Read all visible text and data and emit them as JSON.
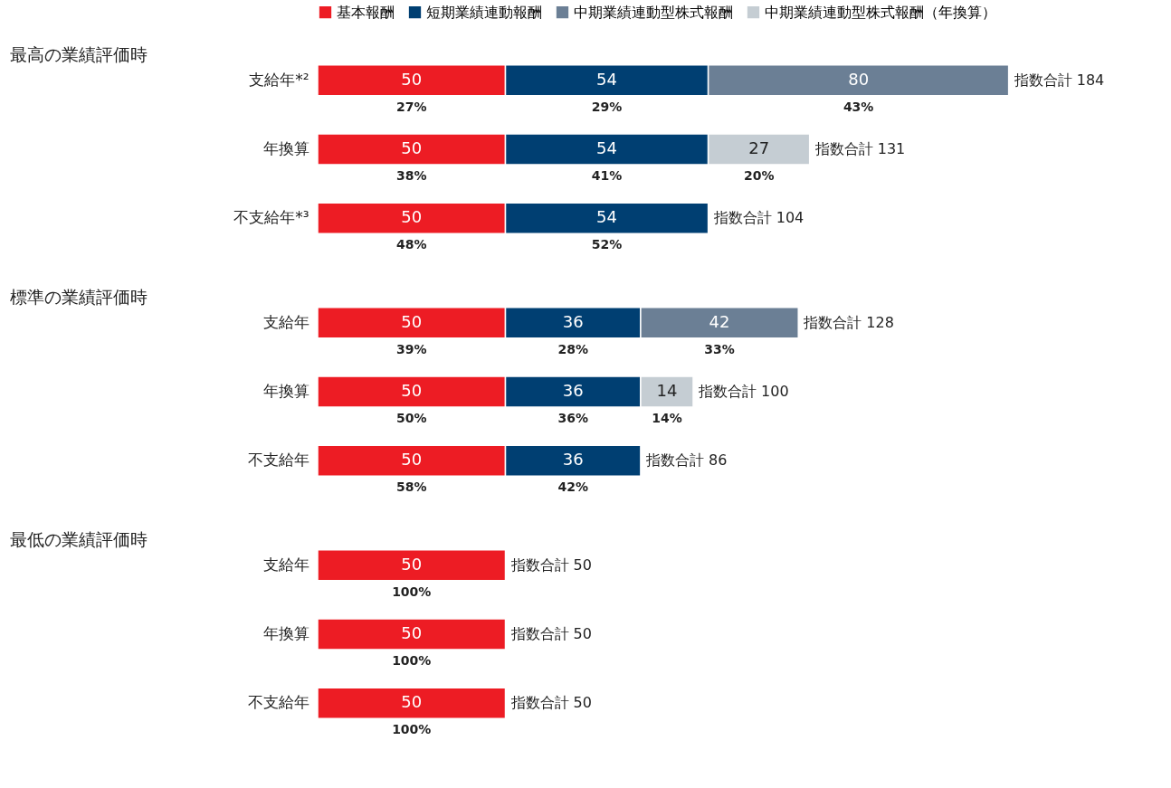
{
  "chart_data": [
    {
      "type": "bar",
      "orientation": "horizontal",
      "stacked": true,
      "data_labels": true,
      "legend": "top left",
      "title": "最高の業績評価時",
      "categories": [
        "支給年*²",
        "年換算",
        "不支給年*³"
      ],
      "series": [
        {
          "name": "基本報酬",
          "color": "#ed1c24",
          "values": [
            50,
            50,
            50
          ]
        },
        {
          "name": "短期業績連動報酬",
          "color": "#003f72",
          "values": [
            54,
            54,
            54
          ]
        },
        {
          "name": "中期業績連動型株式報酬",
          "color": "#6b7f95",
          "values": [
            80,
            null,
            null
          ]
        },
        {
          "name": "中期業績連動型株式報酬（年換算）",
          "color": "#c5cdd3",
          "values": [
            null,
            27,
            null
          ]
        }
      ],
      "totals": [
        "指数合計 184",
        "指数合計 131",
        "指数合計 104"
      ],
      "annotations": [
        "27%",
        "29%",
        "43%",
        "38%",
        "41%",
        "20%",
        "48%",
        "52%"
      ]
    },
    {
      "type": "bar",
      "orientation": "horizontal",
      "stacked": true,
      "data_labels": true,
      "title": "標準の業績評価時",
      "categories": [
        "支給年",
        "年換算",
        "不支給年"
      ],
      "series": [
        {
          "name": "基本報酬",
          "color": "#ed1c24",
          "values": [
            50,
            50,
            50
          ]
        },
        {
          "name": "短期業績連動報酬",
          "color": "#003f72",
          "values": [
            36,
            36,
            36
          ]
        },
        {
          "name": "中期業績連動型株式報酬",
          "color": "#6b7f95",
          "values": [
            42,
            null,
            null
          ]
        },
        {
          "name": "中期業績連動型株式報酬（年換算）",
          "color": "#c5cdd3",
          "values": [
            null,
            14,
            null
          ]
        }
      ],
      "totals": [
        "指数合計 128",
        "指数合計 100",
        "指数合計 86"
      ],
      "annotations": [
        "39%",
        "28%",
        "33%",
        "50%",
        "36%",
        "14%",
        "58%",
        "42%"
      ]
    },
    {
      "type": "bar",
      "orientation": "horizontal",
      "stacked": true,
      "data_labels": true,
      "title": "最低の業績評価時",
      "categories": [
        "支給年",
        "年換算",
        "不支給年"
      ],
      "series": [
        {
          "name": "基本報酬",
          "color": "#ed1c24",
          "values": [
            50,
            50,
            50
          ]
        }
      ],
      "totals": [
        "指数合計 50",
        "指数合計 50",
        "指数合計 50"
      ],
      "annotations": [
        "100%",
        "100%",
        "100%"
      ]
    }
  ]
}
